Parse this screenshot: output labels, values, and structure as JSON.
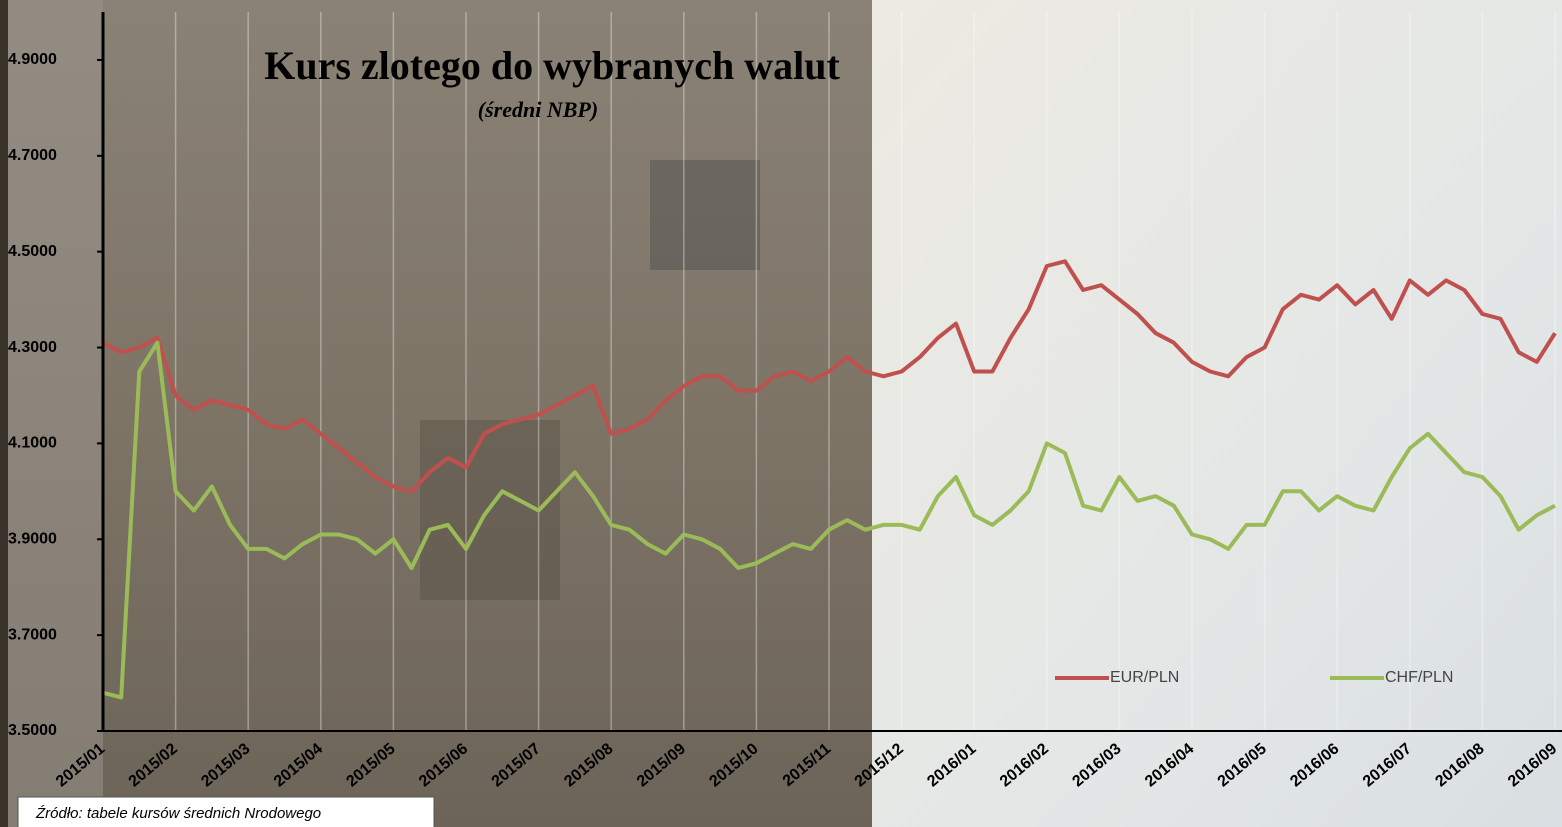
{
  "chart_data": {
    "type": "line",
    "title": "Kurs zlotego do wybranych walut",
    "subtitle": "(średni NBP)",
    "source": "Źródło: tabele kursów średnich Nrodowego",
    "categories": [
      "2015/01",
      null,
      null,
      null,
      "2015/02",
      null,
      null,
      null,
      "2015/03",
      null,
      null,
      null,
      "2015/04",
      null,
      null,
      null,
      "2015/05",
      null,
      null,
      null,
      "2015/06",
      null,
      null,
      null,
      "2015/07",
      null,
      null,
      null,
      "2015/08",
      null,
      null,
      null,
      "2015/09",
      null,
      null,
      null,
      "2015/10",
      null,
      null,
      null,
      "2015/11",
      null,
      null,
      null,
      "2015/12",
      null,
      null,
      null,
      "2016/01",
      null,
      null,
      null,
      "2016/02",
      null,
      null,
      null,
      "2016/03",
      null,
      null,
      null,
      "2016/04",
      null,
      null,
      null,
      "2016/05",
      null,
      null,
      null,
      "2016/06",
      null,
      null,
      null,
      "2016/07",
      null,
      null,
      null,
      "2016/08",
      null,
      null,
      null,
      "2016/09"
    ],
    "series": [
      {
        "name": "EUR/PLN",
        "color": "#c0504d",
        "values": [
          4.31,
          4.29,
          4.3,
          4.32,
          4.2,
          4.17,
          4.19,
          4.18,
          4.17,
          4.14,
          4.13,
          4.15,
          4.12,
          4.09,
          4.06,
          4.03,
          4.01,
          4.0,
          4.04,
          4.07,
          4.05,
          4.12,
          4.14,
          4.15,
          4.16,
          4.18,
          4.2,
          4.22,
          4.12,
          4.13,
          4.15,
          4.19,
          4.22,
          4.24,
          4.24,
          4.21,
          4.21,
          4.24,
          4.25,
          4.23,
          4.25,
          4.28,
          4.25,
          4.24,
          4.25,
          4.28,
          4.32,
          4.35,
          4.25,
          4.25,
          4.32,
          4.38,
          4.47,
          4.48,
          4.42,
          4.43,
          4.4,
          4.37,
          4.33,
          4.31,
          4.27,
          4.25,
          4.24,
          4.28,
          4.3,
          4.38,
          4.41,
          4.4,
          4.43,
          4.39,
          4.42,
          4.36,
          4.44,
          4.41,
          4.44,
          4.42,
          4.37,
          4.36,
          4.29,
          4.27,
          4.33
        ]
      },
      {
        "name": "CHF/PLN",
        "color": "#9bbb59",
        "values": [
          3.58,
          3.57,
          4.25,
          4.31,
          4.0,
          3.96,
          4.01,
          3.93,
          3.88,
          3.88,
          3.86,
          3.89,
          3.91,
          3.91,
          3.9,
          3.87,
          3.9,
          3.84,
          3.92,
          3.93,
          3.88,
          3.95,
          4.0,
          3.98,
          3.96,
          4.0,
          4.04,
          3.99,
          3.93,
          3.92,
          3.89,
          3.87,
          3.91,
          3.9,
          3.88,
          3.84,
          3.85,
          3.87,
          3.89,
          3.88,
          3.92,
          3.94,
          3.92,
          3.93,
          3.93,
          3.92,
          3.99,
          4.03,
          3.95,
          3.93,
          3.96,
          4.0,
          4.1,
          4.08,
          3.97,
          3.96,
          4.03,
          3.98,
          3.99,
          3.97,
          3.91,
          3.9,
          3.88,
          3.93,
          3.93,
          4.0,
          4.0,
          3.96,
          3.99,
          3.97,
          3.96,
          4.03,
          4.09,
          4.12,
          4.08,
          4.04,
          4.03,
          3.99,
          3.92,
          3.95,
          3.97
        ]
      }
    ],
    "ylim": [
      3.5,
      5.0
    ],
    "yticks": [
      {
        "value": 3.5,
        "label": "3.5000"
      },
      {
        "value": 3.7,
        "label": "3.7000"
      },
      {
        "value": 3.9,
        "label": "3.9000"
      },
      {
        "value": 4.1,
        "label": "4.1000"
      },
      {
        "value": 4.3,
        "label": "4.3000"
      },
      {
        "value": 4.5,
        "label": "4.5000"
      },
      {
        "value": 4.7,
        "label": "4.7000"
      },
      {
        "value": 4.9,
        "label": "4.9000"
      }
    ],
    "grid": true,
    "legend": "bottom"
  }
}
